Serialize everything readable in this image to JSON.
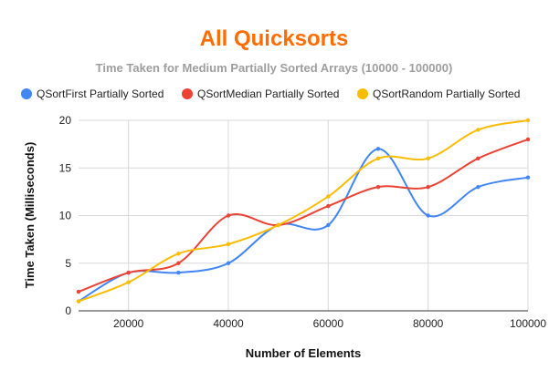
{
  "chart_data": {
    "type": "line",
    "title": "All Quicksorts",
    "subtitle": "Time Taken for Medium Partially Sorted Arrays (10000 - 100000)",
    "xlabel": "Number of Elements",
    "ylabel": "Time Taken (Milliseconds)",
    "x": [
      10000,
      20000,
      30000,
      40000,
      50000,
      60000,
      70000,
      80000,
      90000,
      100000
    ],
    "xlim": [
      10000,
      100000
    ],
    "ylim": [
      0,
      20
    ],
    "x_ticks": [
      20000,
      40000,
      60000,
      80000,
      100000
    ],
    "y_ticks": [
      0,
      5,
      10,
      15,
      20
    ],
    "grid": true,
    "smooth": true,
    "legend_position": "top",
    "series": [
      {
        "name": "QSortFirst Partially Sorted",
        "color": "#4285F4",
        "values": [
          1,
          4,
          4,
          5,
          9,
          9,
          17,
          10,
          13,
          14
        ]
      },
      {
        "name": "QSortMedian Partially Sorted",
        "color": "#EA4335",
        "values": [
          2,
          4,
          5,
          10,
          9,
          11,
          13,
          13,
          16,
          18
        ]
      },
      {
        "name": "QSortRandom Partially Sorted",
        "color": "#FBBC04",
        "values": [
          1,
          3,
          6,
          7,
          9,
          12,
          16,
          16,
          19,
          20
        ]
      }
    ]
  },
  "colors": {
    "title": "#FF6D01",
    "subtitle": "#9E9E9E",
    "grid": "#D9D9D9",
    "axis": "#333333"
  }
}
